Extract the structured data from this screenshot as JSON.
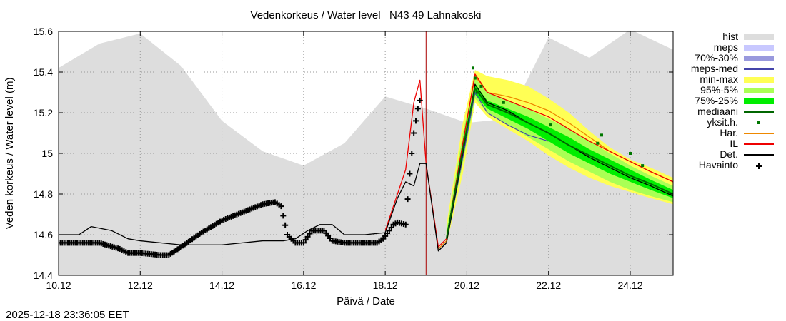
{
  "chart_data": {
    "type": "line",
    "title": "Vedenkorkeus / Water level   N43 49 Lahnakoski",
    "xlabel": "Päivä / Date",
    "ylabel": "Veden korkeus / Water level (m)",
    "footer_timestamp": "2025-12-18 23:36:05 EET",
    "xlim": [
      10,
      25.05
    ],
    "ylim": [
      14.4,
      15.6
    ],
    "x_unit": "days of December 2025",
    "x_ticks": [
      10,
      12,
      14,
      16,
      18,
      20,
      22,
      24
    ],
    "x_tick_labels": [
      "10.12",
      "12.12",
      "14.12",
      "16.12",
      "18.12",
      "20.12",
      "22.12",
      "24.12"
    ],
    "y_ticks": [
      14.4,
      14.6,
      14.8,
      15.0,
      15.2,
      15.4,
      15.6
    ],
    "y_tick_labels": [
      "14.4",
      "14.6",
      "14.8",
      "15",
      "15.2",
      "15.4",
      "15.6"
    ],
    "grid": true,
    "forecast_start": 19.0,
    "legend_position": "right",
    "colors": {
      "hist": "#dddddd",
      "meps": "#c8c8ff",
      "p70_30": "#9999dd",
      "meps_med": "#4444aa",
      "minmax": "#ffff55",
      "p95_5": "#aaff55",
      "p75_25": "#00ee00",
      "median": "#006600",
      "members": "#007700",
      "har": "#ee8800",
      "il": "#ee0000",
      "det": "#000000",
      "obs": "#000000",
      "now_line": "#aa0000",
      "grid": "#999999"
    },
    "legend": [
      {
        "key": "hist",
        "label": "hist",
        "style": "band"
      },
      {
        "key": "meps",
        "label": "meps",
        "style": "band"
      },
      {
        "key": "p70_30",
        "label": "70%-30%",
        "style": "band"
      },
      {
        "key": "meps_med",
        "label": "meps-med",
        "style": "line"
      },
      {
        "key": "minmax",
        "label": "min-max",
        "style": "band"
      },
      {
        "key": "p95_5",
        "label": "95%-5%",
        "style": "band"
      },
      {
        "key": "p75_25",
        "label": "75%-25%",
        "style": "band"
      },
      {
        "key": "median",
        "label": "mediaani",
        "style": "line"
      },
      {
        "key": "members",
        "label": "yksit.h.",
        "style": "dot"
      },
      {
        "key": "har",
        "label": "Har.",
        "style": "line"
      },
      {
        "key": "il",
        "label": "IL",
        "style": "line"
      },
      {
        "key": "det",
        "label": "Det.",
        "style": "line"
      },
      {
        "key": "obs",
        "label": "Havainto",
        "style": "cross"
      }
    ],
    "series": [
      {
        "name": "hist",
        "type": "area",
        "x": [
          10,
          11,
          12,
          13,
          14,
          15,
          16,
          17,
          18,
          19,
          20,
          21,
          22,
          23,
          24,
          25.05
        ],
        "y": [
          15.42,
          15.54,
          15.59,
          15.43,
          15.16,
          15.01,
          14.94,
          15.05,
          15.28,
          15.22,
          15.15,
          15.17,
          15.57,
          15.47,
          15.61,
          15.51
        ]
      },
      {
        "name": "min-max",
        "type": "band",
        "x": [
          19.5,
          19.9,
          20.2,
          20.5,
          21.0,
          21.5,
          22.0,
          22.5,
          23.0,
          23.5,
          24.0,
          24.5,
          25.05
        ],
        "upper": [
          14.65,
          15.15,
          15.41,
          15.38,
          15.36,
          15.33,
          15.27,
          15.2,
          15.11,
          15.03,
          14.97,
          14.93,
          14.88
        ],
        "lower": [
          14.55,
          14.9,
          15.25,
          15.18,
          15.12,
          15.06,
          14.99,
          14.93,
          14.88,
          14.84,
          14.81,
          14.78,
          14.75
        ]
      },
      {
        "name": "95%-5%",
        "type": "band",
        "x": [
          19.5,
          19.9,
          20.2,
          20.5,
          21.0,
          21.5,
          22.0,
          22.5,
          23.0,
          23.5,
          24.0,
          24.5,
          25.05
        ],
        "upper": [
          14.62,
          15.1,
          15.37,
          15.3,
          15.26,
          15.22,
          15.17,
          15.12,
          15.06,
          15.0,
          14.94,
          14.89,
          14.84
        ],
        "lower": [
          14.56,
          14.95,
          15.27,
          15.2,
          15.14,
          15.08,
          15.02,
          14.96,
          14.91,
          14.86,
          14.82,
          14.79,
          14.76
        ]
      },
      {
        "name": "75%-25%",
        "type": "band",
        "x": [
          19.5,
          19.9,
          20.2,
          20.5,
          21.0,
          21.5,
          22.0,
          22.5,
          23.0,
          23.5,
          24.0,
          24.5,
          25.05
        ],
        "upper": [
          14.6,
          15.05,
          15.34,
          15.26,
          15.22,
          15.18,
          15.13,
          15.08,
          15.02,
          14.97,
          14.92,
          14.87,
          14.82
        ],
        "lower": [
          14.57,
          14.98,
          15.29,
          15.22,
          15.17,
          15.12,
          15.06,
          15.0,
          14.95,
          14.9,
          14.86,
          14.82,
          14.78
        ]
      },
      {
        "name": "mediaani",
        "x": [
          19.5,
          19.9,
          20.2,
          20.5,
          21.0,
          21.5,
          22.0,
          22.5,
          23.0,
          23.5,
          24.0,
          24.5,
          25.05
        ],
        "y": [
          14.58,
          15.02,
          15.32,
          15.24,
          15.2,
          15.15,
          15.1,
          15.04,
          14.99,
          14.94,
          14.89,
          14.85,
          14.8
        ]
      },
      {
        "name": "yksit.h.",
        "type": "points",
        "x": [
          20.15,
          20.2,
          20.25,
          20.35,
          20.9,
          22.05,
          23.2,
          23.3,
          24.0,
          24.3
        ],
        "y": [
          15.42,
          15.37,
          15.3,
          15.33,
          15.25,
          15.14,
          15.05,
          15.09,
          15.0,
          14.94
        ]
      },
      {
        "name": "meps-med",
        "x": [
          19.3,
          19.5,
          19.9,
          20.2,
          20.5,
          21.0,
          21.5,
          22.0
        ],
        "y": [
          14.52,
          14.56,
          14.98,
          15.3,
          15.2,
          15.14,
          15.09,
          15.06
        ]
      },
      {
        "name": "Har.",
        "x": [
          19.3,
          19.5,
          19.9,
          20.2,
          20.5,
          21.0,
          21.5,
          22.0,
          22.5,
          23.0,
          23.5,
          24.0,
          24.5,
          25.05
        ],
        "y": [
          14.53,
          14.57,
          15.05,
          15.38,
          15.3,
          15.28,
          15.25,
          15.21,
          15.15,
          15.08,
          15.01,
          14.96,
          14.91,
          14.86
        ]
      },
      {
        "name": "IL",
        "x": [
          18.0,
          18.5,
          18.7,
          18.85,
          19.0,
          19.3,
          19.5,
          19.9,
          20.2,
          20.5,
          21.0,
          21.5,
          22.0,
          22.5,
          23.0,
          23.5,
          24.0,
          24.5,
          25.05
        ],
        "y": [
          14.62,
          14.92,
          15.25,
          15.36,
          14.95,
          14.54,
          14.58,
          15.05,
          15.39,
          15.3,
          15.26,
          15.22,
          15.18,
          15.12,
          15.06,
          15.01,
          14.96,
          14.91,
          14.86
        ]
      },
      {
        "name": "Det.",
        "x": [
          10.0,
          10.5,
          10.8,
          11.3,
          11.7,
          12.0,
          13.0,
          14.0,
          15.0,
          15.5,
          15.8,
          16.1,
          16.4,
          16.7,
          17.0,
          17.5,
          18.0,
          18.3,
          18.5,
          18.7,
          18.85,
          19.0,
          19.3,
          19.5,
          19.9,
          20.2,
          20.5,
          21.0,
          21.5,
          22.0,
          22.5,
          23.0,
          23.5,
          24.0,
          24.5,
          25.05
        ],
        "y": [
          14.6,
          14.6,
          14.64,
          14.62,
          14.58,
          14.57,
          14.55,
          14.55,
          14.57,
          14.57,
          14.58,
          14.62,
          14.65,
          14.65,
          14.6,
          14.6,
          14.61,
          14.78,
          14.86,
          14.84,
          14.95,
          14.95,
          14.52,
          14.56,
          15.0,
          15.34,
          15.25,
          15.21,
          15.15,
          15.1,
          15.04,
          14.98,
          14.93,
          14.88,
          14.84,
          14.79
        ]
      },
      {
        "name": "Havainto",
        "type": "points",
        "x": [
          10.0,
          10.5,
          11.0,
          11.5,
          11.7,
          12.0,
          12.5,
          12.7,
          13.0,
          13.5,
          14.0,
          14.5,
          15.0,
          15.3,
          15.45,
          15.6,
          15.8,
          16.0,
          16.2,
          16.5,
          16.7,
          17.0,
          17.5,
          17.8,
          17.95,
          18.1,
          18.2,
          18.3,
          18.5,
          18.6,
          18.7,
          18.8,
          18.85
        ],
        "y": [
          14.56,
          14.56,
          14.56,
          14.53,
          14.51,
          14.51,
          14.5,
          14.5,
          14.54,
          14.61,
          14.67,
          14.71,
          14.75,
          14.76,
          14.74,
          14.6,
          14.56,
          14.56,
          14.62,
          14.62,
          14.57,
          14.56,
          14.56,
          14.56,
          14.58,
          14.62,
          14.65,
          14.66,
          14.65,
          14.9,
          15.1,
          15.22,
          15.26
        ]
      }
    ]
  }
}
